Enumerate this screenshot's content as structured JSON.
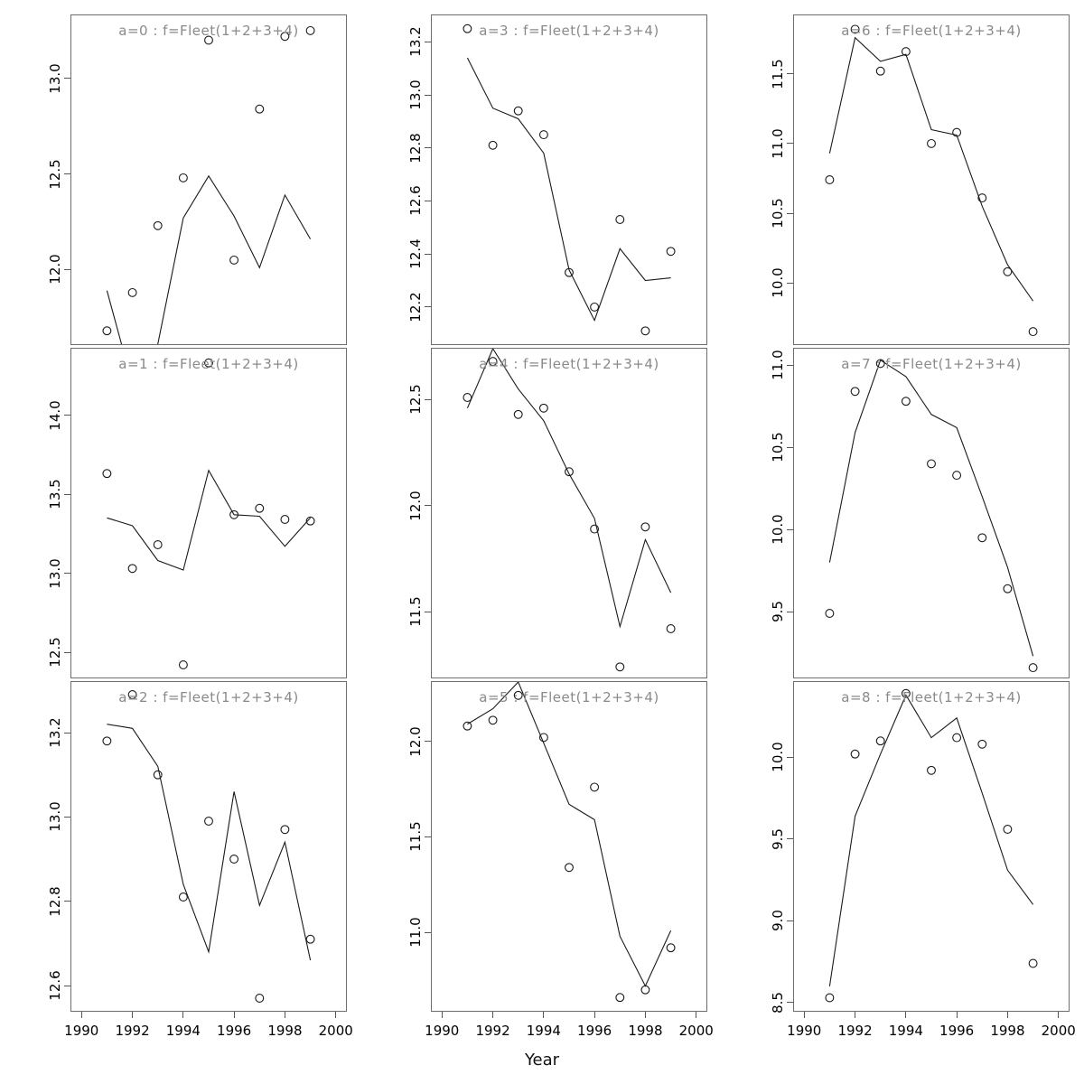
{
  "figure": {
    "xlabel": "Year",
    "x_tick_labels": [
      "1990",
      "1992",
      "1994",
      "1996",
      "1998",
      "2000"
    ],
    "x_ticks": [
      1990,
      1992,
      1994,
      1996,
      1998,
      2000
    ],
    "marker": "open-circle",
    "colors": {
      "background": "#ffffff",
      "panel_border": "#6e6e6e",
      "title_text": "#8a8a8a",
      "axis_text": "#000000",
      "tick_mark": "#555555",
      "line": "#1a1a1a",
      "point": "#1a1a1a"
    }
  },
  "chart_data": [
    {
      "type": "scatter+line",
      "title": "a=0 : f=Fleet(1+2+3+4)",
      "row": 0,
      "col": 0,
      "x": [
        1991,
        1992,
        1993,
        1994,
        1995,
        1996,
        1997,
        1998,
        1999
      ],
      "points": [
        11.68,
        11.88,
        12.23,
        12.48,
        13.2,
        12.05,
        12.84,
        13.22,
        13.25
      ],
      "line": [
        11.89,
        11.4,
        11.61,
        12.27,
        12.49,
        12.28,
        12.01,
        12.39,
        12.16
      ],
      "ylim": [
        11.61,
        13.33
      ],
      "y_ticks": [
        12.0,
        12.5,
        13.0
      ],
      "y_tick_labels": [
        "12.0",
        "12.5",
        "13.0"
      ]
    },
    {
      "type": "scatter+line",
      "title": "a=3 : f=Fleet(1+2+3+4)",
      "row": 0,
      "col": 1,
      "x": [
        1991,
        1992,
        1993,
        1994,
        1995,
        1996,
        1997,
        1998,
        1999
      ],
      "points": [
        13.25,
        12.81,
        12.94,
        12.85,
        12.33,
        12.2,
        12.53,
        12.11,
        12.41
      ],
      "line": [
        13.14,
        12.95,
        12.91,
        12.78,
        12.34,
        12.15,
        12.42,
        12.3,
        12.31
      ],
      "ylim": [
        12.06,
        13.3
      ],
      "y_ticks": [
        12.2,
        12.4,
        12.6,
        12.8,
        13.0,
        13.2
      ],
      "y_tick_labels": [
        "12.2",
        "12.4",
        "12.6",
        "12.8",
        "13.0",
        "13.2"
      ]
    },
    {
      "type": "scatter+line",
      "title": "a=6 : f=Fleet(1+2+3+4)",
      "row": 0,
      "col": 2,
      "x": [
        1991,
        1992,
        1993,
        1994,
        1995,
        1996,
        1997,
        1998,
        1999
      ],
      "points": [
        10.74,
        11.82,
        11.52,
        11.66,
        11.0,
        11.08,
        10.61,
        10.08,
        9.65
      ],
      "line": [
        10.93,
        11.76,
        11.59,
        11.64,
        11.1,
        11.06,
        10.55,
        10.13,
        9.87
      ],
      "ylim": [
        9.56,
        11.92
      ],
      "y_ticks": [
        10.0,
        10.5,
        11.0,
        11.5
      ],
      "y_tick_labels": [
        "10.0",
        "10.5",
        "11.0",
        "11.5"
      ]
    },
    {
      "type": "scatter+line",
      "title": "a=1 : f=Fleet(1+2+3+4)",
      "row": 1,
      "col": 0,
      "x": [
        1991,
        1992,
        1993,
        1994,
        1995,
        1996,
        1997,
        1998,
        1999
      ],
      "points": [
        13.63,
        13.03,
        13.18,
        12.42,
        14.33,
        13.37,
        13.41,
        13.34,
        13.33
      ],
      "line": [
        13.35,
        13.3,
        13.08,
        13.02,
        13.65,
        13.37,
        13.36,
        13.17,
        13.35
      ],
      "ylim": [
        12.34,
        14.42
      ],
      "y_ticks": [
        12.5,
        13.0,
        13.5,
        14.0
      ],
      "y_tick_labels": [
        "12.5",
        "13.0",
        "13.5",
        "14.0"
      ]
    },
    {
      "type": "scatter+line",
      "title": "a=4 : f=Fleet(1+2+3+4)",
      "row": 1,
      "col": 1,
      "x": [
        1991,
        1992,
        1993,
        1994,
        1995,
        1996,
        1997,
        1998,
        1999
      ],
      "points": [
        12.51,
        12.68,
        12.43,
        12.46,
        12.16,
        11.89,
        11.24,
        11.9,
        11.42
      ],
      "line": [
        12.46,
        12.74,
        12.55,
        12.4,
        12.15,
        11.94,
        11.43,
        11.84,
        11.59
      ],
      "ylim": [
        11.19,
        12.74
      ],
      "y_ticks": [
        11.5,
        12.0,
        12.5
      ],
      "y_tick_labels": [
        "11.5",
        "12.0",
        "12.5"
      ]
    },
    {
      "type": "scatter+line",
      "title": "a=7 : f=Fleet(1+2+3+4)",
      "row": 1,
      "col": 2,
      "x": [
        1991,
        1992,
        1993,
        1994,
        1995,
        1996,
        1997,
        1998,
        1999
      ],
      "points": [
        9.49,
        10.84,
        11.01,
        10.78,
        10.4,
        10.33,
        9.95,
        9.64,
        9.16
      ],
      "line": [
        9.8,
        10.59,
        11.03,
        10.93,
        10.7,
        10.62,
        10.2,
        9.77,
        9.23
      ],
      "ylim": [
        9.1,
        11.1
      ],
      "y_ticks": [
        9.5,
        10.0,
        10.5,
        11.0
      ],
      "y_tick_labels": [
        "9.5",
        "10.0",
        "10.5",
        "11.0"
      ]
    },
    {
      "type": "scatter+line",
      "title": "a=2 : f=Fleet(1+2+3+4)",
      "row": 2,
      "col": 0,
      "x": [
        1991,
        1992,
        1993,
        1994,
        1995,
        1996,
        1997,
        1998,
        1999
      ],
      "points": [
        13.18,
        13.29,
        13.1,
        12.81,
        12.99,
        12.9,
        12.57,
        12.97,
        12.71
      ],
      "line": [
        13.22,
        13.21,
        13.12,
        12.84,
        12.68,
        13.06,
        12.79,
        12.94,
        12.66
      ],
      "ylim": [
        12.54,
        13.32
      ],
      "y_ticks": [
        12.6,
        12.8,
        13.0,
        13.2
      ],
      "y_tick_labels": [
        "12.6",
        "12.8",
        "13.0",
        "13.2"
      ]
    },
    {
      "type": "scatter+line",
      "title": "a=5 : f=Fleet(1+2+3+4)",
      "row": 2,
      "col": 1,
      "x": [
        1991,
        1992,
        1993,
        1994,
        1995,
        1996,
        1997,
        1998,
        1999
      ],
      "points": [
        12.08,
        12.11,
        12.24,
        12.02,
        11.34,
        11.76,
        10.66,
        10.7,
        10.92
      ],
      "line": [
        12.09,
        12.17,
        12.31,
        11.99,
        11.67,
        11.59,
        10.98,
        10.72,
        11.01
      ],
      "ylim": [
        10.59,
        12.31
      ],
      "y_ticks": [
        11.0,
        11.5,
        12.0
      ],
      "y_tick_labels": [
        "11.0",
        "11.5",
        "12.0"
      ]
    },
    {
      "type": "scatter+line",
      "title": "a=8 : f=Fleet(1+2+3+4)",
      "row": 2,
      "col": 2,
      "x": [
        1991,
        1992,
        1993,
        1994,
        1995,
        1996,
        1997,
        1998,
        1999
      ],
      "points": [
        8.53,
        10.02,
        10.1,
        10.39,
        9.92,
        10.12,
        10.08,
        9.56,
        8.74
      ],
      "line": [
        8.6,
        9.64,
        10.02,
        10.38,
        10.12,
        10.24,
        9.78,
        9.31,
        9.1
      ],
      "ylim": [
        8.45,
        10.46
      ],
      "y_ticks": [
        8.5,
        9.0,
        9.5,
        10.0
      ],
      "y_tick_labels": [
        "8.5",
        "9.0",
        "9.5",
        "10.0"
      ]
    }
  ]
}
